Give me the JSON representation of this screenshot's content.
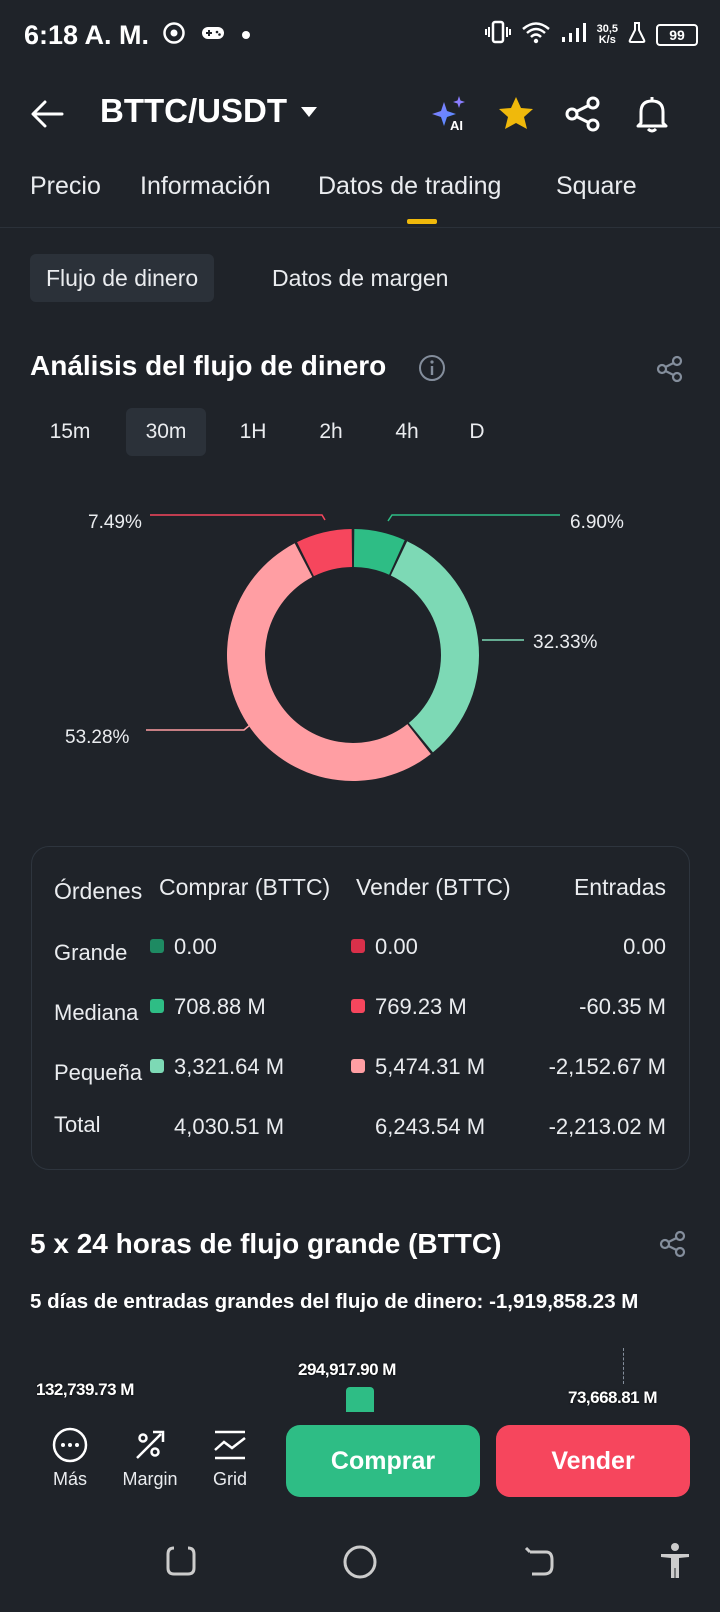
{
  "status_bar": {
    "time": "6:18 A. M.",
    "net_speed_value": "30,5",
    "net_speed_unit": "K/s",
    "battery": "99"
  },
  "header": {
    "pair": "BTTC/USDT"
  },
  "tabs": [
    {
      "label": "Precio"
    },
    {
      "label": "Información"
    },
    {
      "label": "Datos de trading",
      "active": true
    },
    {
      "label": "Square"
    }
  ],
  "subtabs": [
    {
      "label": "Flujo de dinero",
      "active": true
    },
    {
      "label": "Datos de margen"
    }
  ],
  "money_flow": {
    "title": "Análisis del flujo de dinero",
    "timeframes": [
      {
        "label": "15m"
      },
      {
        "label": "30m",
        "active": true
      },
      {
        "label": "1H"
      },
      {
        "label": "2h"
      },
      {
        "label": "4h"
      },
      {
        "label": "D"
      }
    ],
    "donut": {
      "slices": [
        {
          "label": "6.90%",
          "value": 6.9,
          "color": "#2ebd85"
        },
        {
          "label": "32.33%",
          "value": 32.33,
          "color": "#7dd9b5"
        },
        {
          "label": "53.28%",
          "value": 53.28,
          "color": "#ff9ea3"
        },
        {
          "label": "7.49%",
          "value": 7.49,
          "color": "#f6465d"
        }
      ]
    },
    "table": {
      "headers": {
        "orders": "Órdenes",
        "buy": "Comprar (BTTC)",
        "sell": "Vender (BTTC)",
        "inflow": "Entradas"
      },
      "rows": [
        {
          "label": "Grande",
          "buy": "0.00",
          "sell": "0.00",
          "inflow": "0.00",
          "buy_color": "#1e8a62",
          "sell_color": "#d9304a"
        },
        {
          "label": "Mediana",
          "buy": "708.88 M",
          "sell": "769.23 M",
          "inflow": "-60.35 M",
          "buy_color": "#2ebd85",
          "sell_color": "#f6465d"
        },
        {
          "label": "Pequeña",
          "buy": "3,321.64 M",
          "sell": "5,474.31 M",
          "inflow": "-2,152.67 M",
          "buy_color": "#7dd9b5",
          "sell_color": "#ff9ea3"
        },
        {
          "label": "Total",
          "buy": "4,030.51 M",
          "sell": "6,243.54 M",
          "inflow": "-2,213.02 M"
        }
      ]
    }
  },
  "large_flow": {
    "title": "5 x 24 horas de flujo grande (BTTC)",
    "subtitle": "5 días de entradas grandes del flujo de dinero: -1,919,858.23 M",
    "bar_labels": [
      "132,739.73 M",
      "294,917.90 M",
      "73,668.81 M"
    ]
  },
  "bottom_bar": {
    "more": "Más",
    "margin": "Margin",
    "grid": "Grid",
    "buy": "Comprar",
    "sell": "Vender"
  },
  "colors": {
    "background": "#1f2329",
    "accent": "#f0b90b",
    "buy": "#2ebd85",
    "sell": "#f6465d"
  }
}
